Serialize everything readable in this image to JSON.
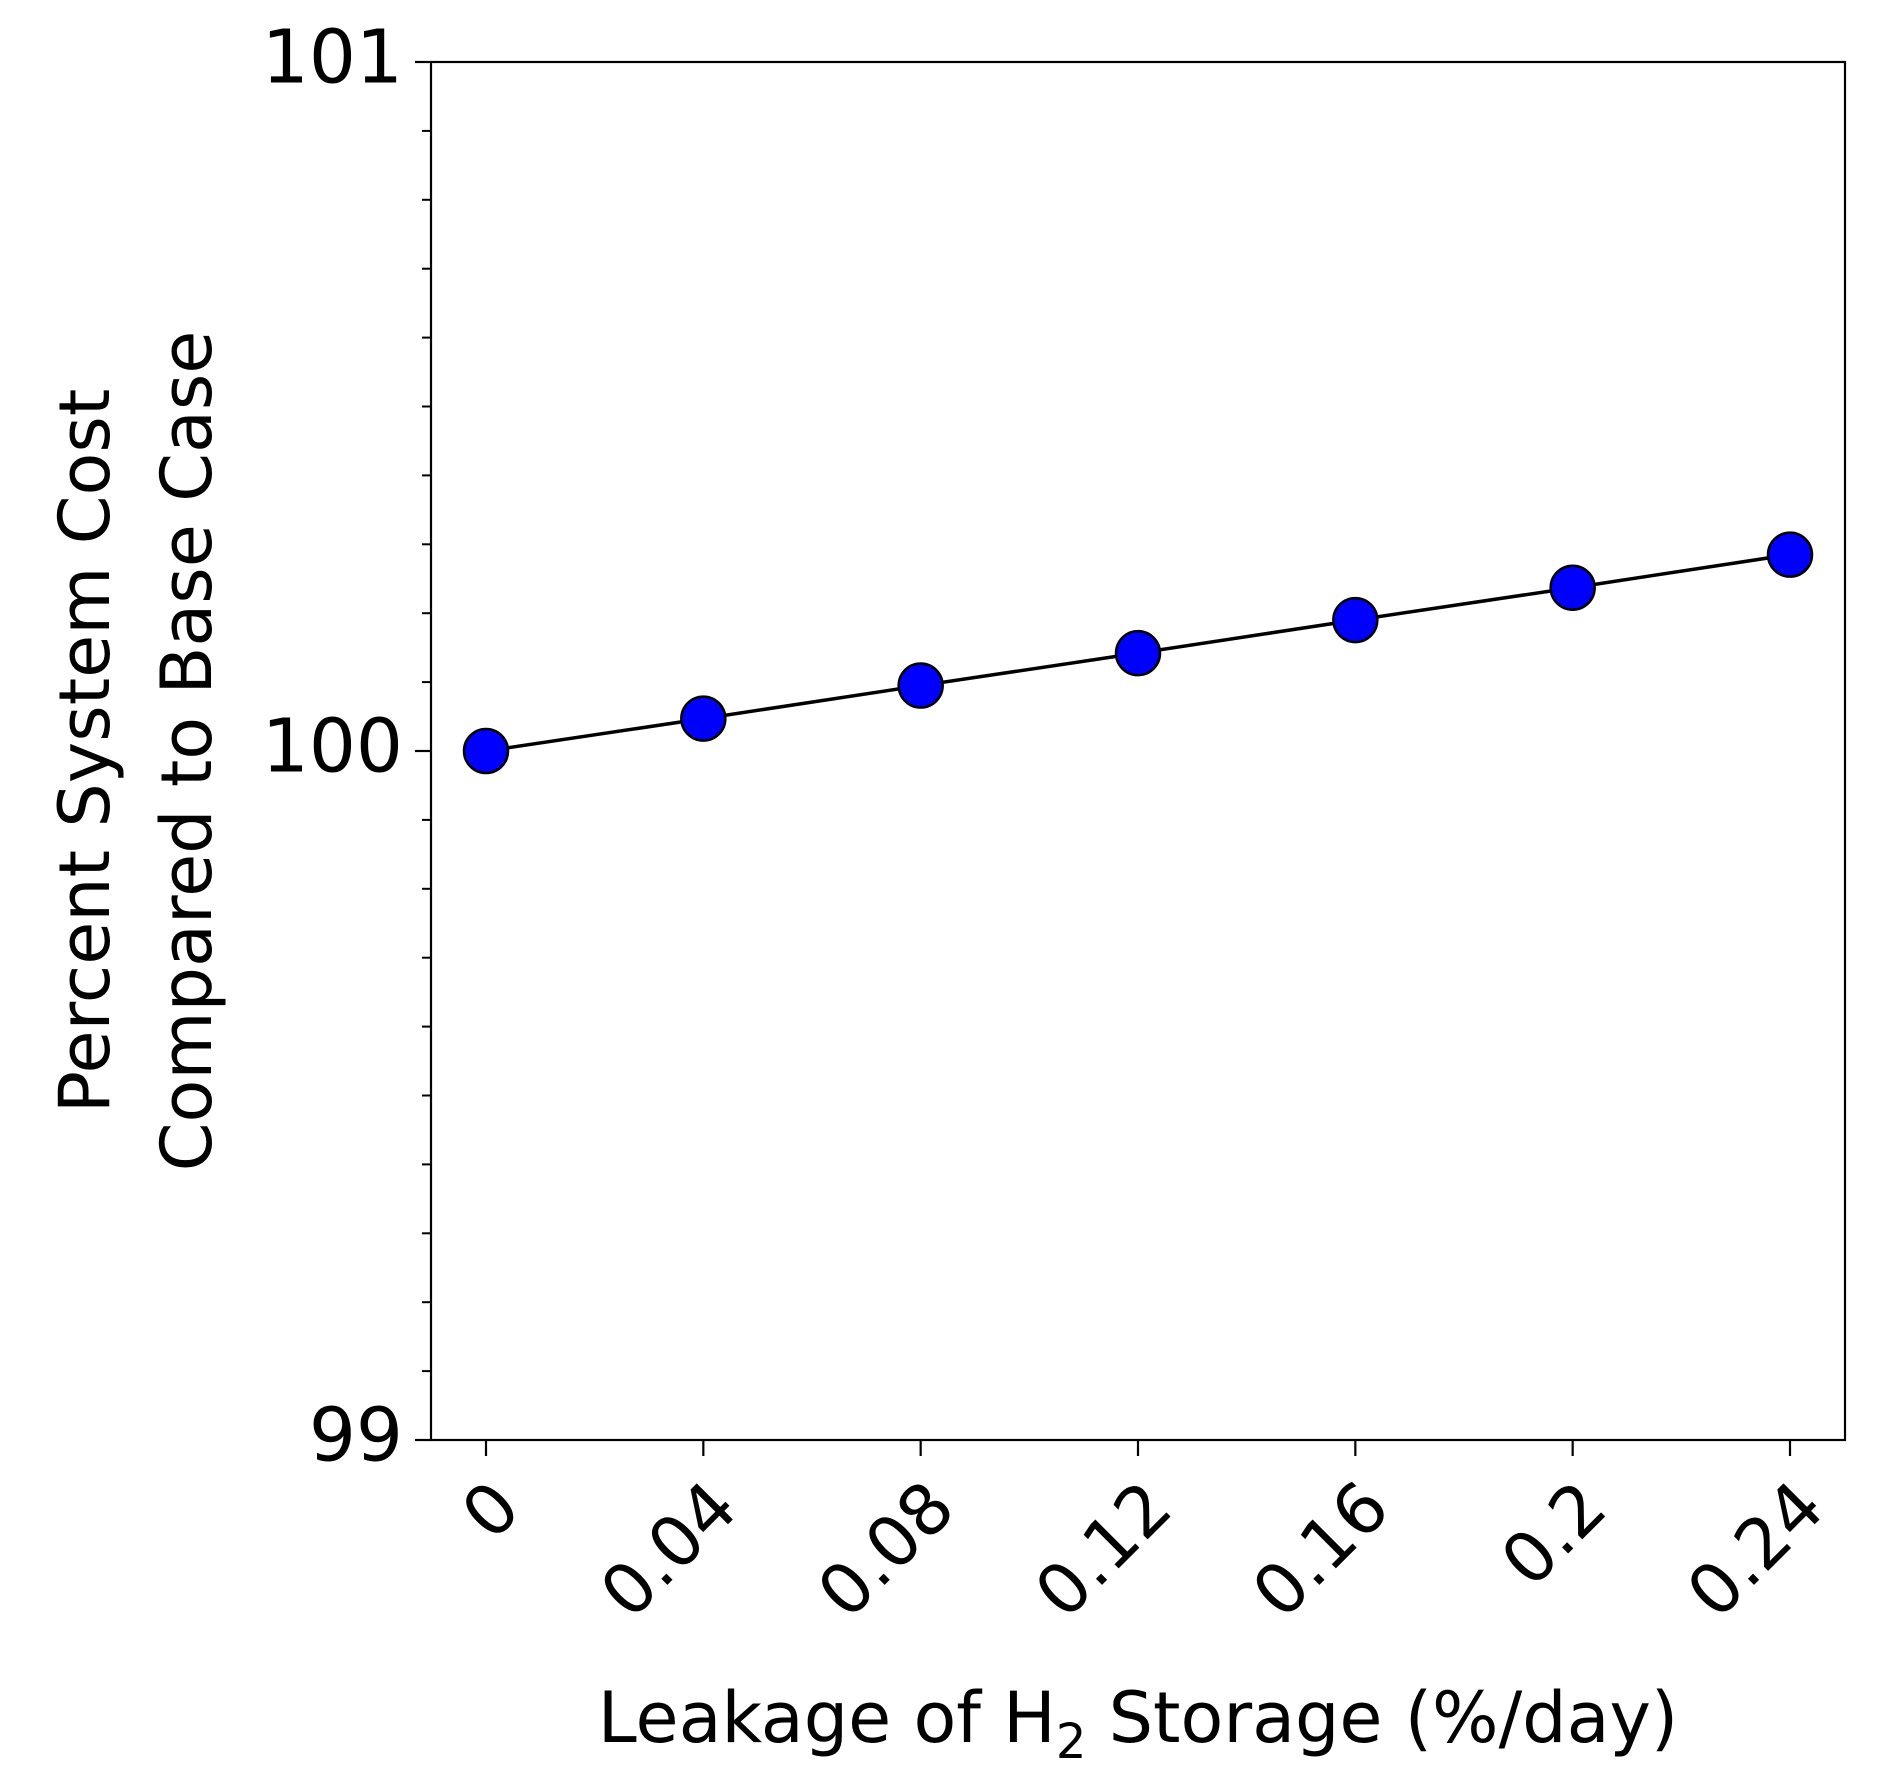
{
  "chart_data": {
    "type": "line",
    "title": "",
    "xlabel_parts": {
      "before": "Leakage of H",
      "subscript": "2",
      "after": " Storage (%/day)"
    },
    "ylabel_lines": [
      "Percent System Cost",
      "Compared to Base Case"
    ],
    "categories": [
      "0",
      "0.04",
      "0.08",
      "0.12",
      "0.16",
      "0.2",
      "0.24"
    ],
    "x": [
      0,
      0.04,
      0.08,
      0.12,
      0.16,
      0.2,
      0.24
    ],
    "series": [
      {
        "values": [
          100.0,
          100.047,
          100.095,
          100.142,
          100.19,
          100.237,
          100.285
        ]
      }
    ],
    "ylim": [
      99,
      101
    ],
    "yticks_major": [
      99,
      100,
      101
    ],
    "yticks_minor_step": 0.1,
    "legend": "none",
    "grid": false,
    "colors": {
      "marker_fill": "#0000ff",
      "marker_edge": "#000000",
      "line": "#000000"
    }
  }
}
